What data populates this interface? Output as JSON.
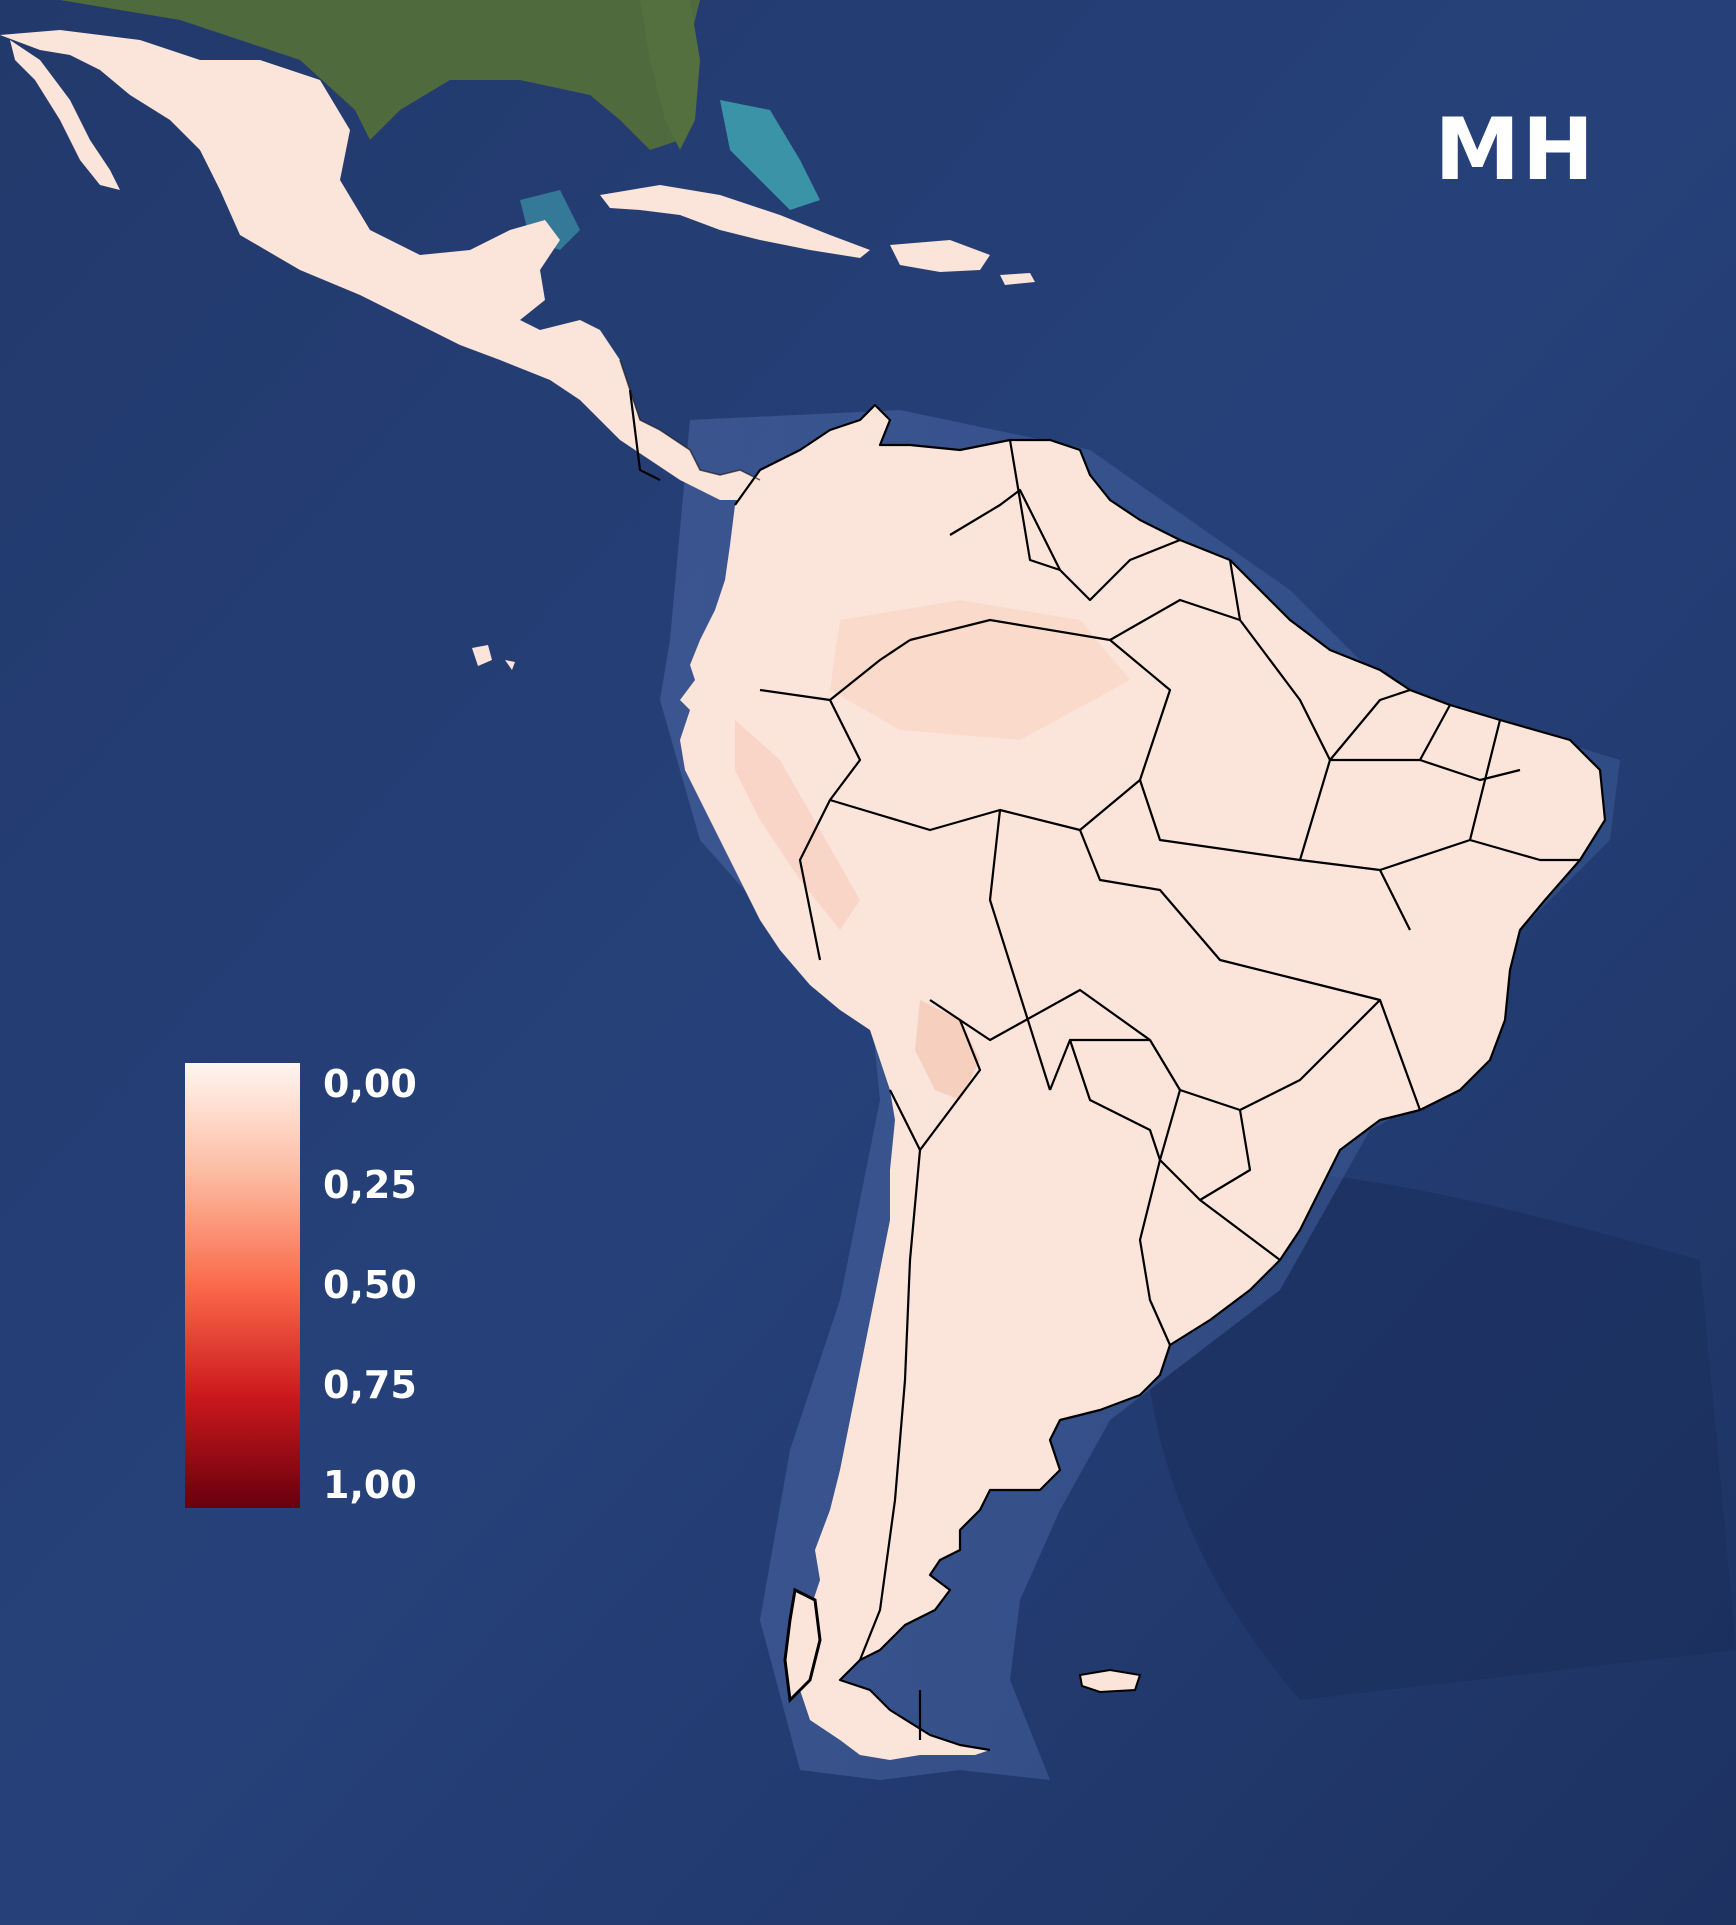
{
  "map": {
    "title": "MH",
    "legend": {
      "labels": [
        "0,00",
        "0,25",
        "0,50",
        "0,75",
        "1,00"
      ],
      "colors": [
        "#fff5f0",
        "#fcbba1",
        "#fb6a4a",
        "#cb181d",
        "#67000d"
      ]
    },
    "colors": {
      "ocean": "#243c70",
      "ocean_deep": "#1b2f5c",
      "land_value_fill": "#fbe3d8",
      "land_higher_value": "#f6c9b6",
      "north_america_land": "#4f6a3c",
      "shallow_water": "#3fa2b0",
      "border": "#000000"
    },
    "icons": [
      "map-scale-gradient"
    ]
  }
}
